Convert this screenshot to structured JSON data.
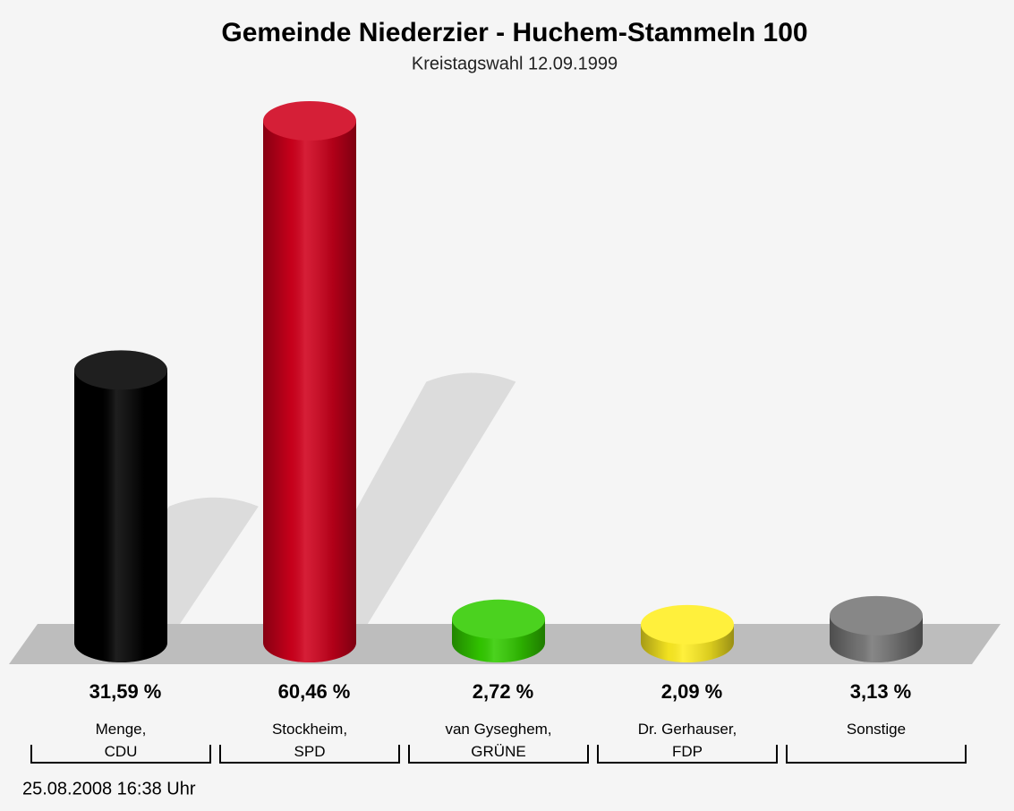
{
  "chart_data": {
    "type": "bar",
    "title": "Gemeinde Niederzier - Huchem-Stammeln 100",
    "subtitle": "Kreistagswahl 12.09.1999",
    "categories": [
      "Menge,\nCDU",
      "Stockheim,\nSPD",
      "van Gyseghem,\nGRÜNE",
      "Dr. Gerhauser,\nFDP",
      "Sonstige"
    ],
    "values": [
      31.59,
      60.46,
      2.72,
      2.09,
      3.13
    ],
    "value_labels": [
      "31,59 %",
      "60,46 %",
      "2,72 %",
      "2,09 %",
      "3,13 %"
    ],
    "colors": [
      "#000000",
      "#d0001c",
      "#33cc00",
      "#ffee22",
      "#777777"
    ],
    "footer": "25.08.2008 16:38 Uhr"
  }
}
